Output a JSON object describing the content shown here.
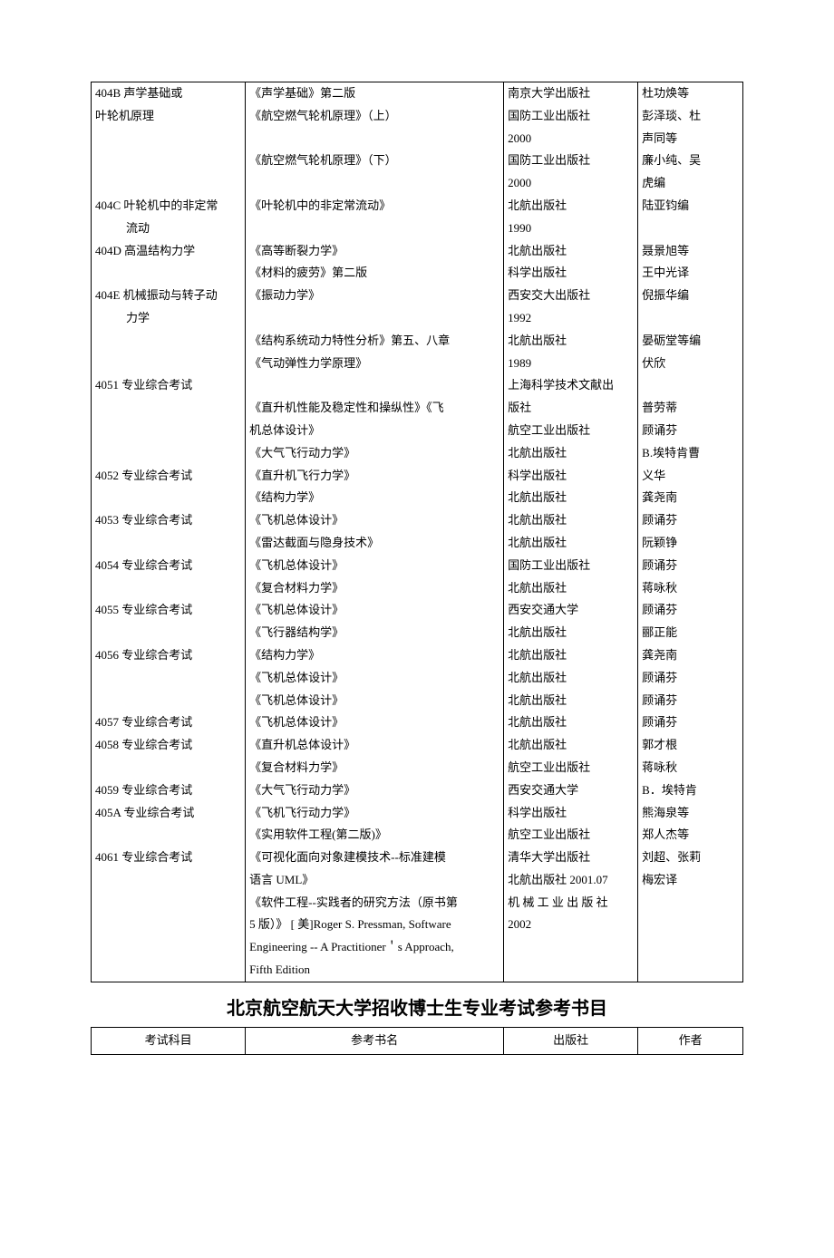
{
  "table1": {
    "rows": [
      {
        "c1": "404B 声学基础或",
        "c2": "《声学基础》第二版",
        "c3": "南京大学出版社",
        "c4": "杜功焕等"
      },
      {
        "c1": "叶轮机原理",
        "c2": "《航空燃气轮机原理》（上）",
        "c3": "国防工业出版社",
        "c4": "彭泽琰、杜"
      },
      {
        "c1": "",
        "c2": "",
        "c3": "2000",
        "c4": "声同等"
      },
      {
        "c1": "",
        "c2": "《航空燃气轮机原理》（下）",
        "c3": "国防工业出版社",
        "c4": "廉小纯、吴"
      },
      {
        "c1": "",
        "c2": "",
        "c3": "2000",
        "c4": "虎编"
      },
      {
        "c1": "404C 叶轮机中的非定常",
        "c2": "《叶轮机中的非定常流动》",
        "c3": "北航出版社",
        "c4": "陆亚钧编"
      },
      {
        "c1": "流动",
        "c1_indent": true,
        "c2": "",
        "c3": "1990",
        "c4": ""
      },
      {
        "c1": "404D 高温结构力学",
        "c2": "《高等断裂力学》",
        "c3": "北航出版社",
        "c4": "聂景旭等"
      },
      {
        "c1": "",
        "c2": "《材料的疲劳》第二版",
        "c3": "科学出版社",
        "c4": "王中光译"
      },
      {
        "c1": "404E 机械振动与转子动",
        "c2": "《振动力学》",
        "c3": "西安交大出版社",
        "c4": "倪振华编"
      },
      {
        "c1": "力学",
        "c1_indent": true,
        "c2": "",
        "c3": "1992",
        "c4": ""
      },
      {
        "c1": "",
        "c2": "《结构系统动力特性分析》第五、八章",
        "c3": "北航出版社",
        "c4": "晏砺堂等编"
      },
      {
        "c1": "",
        "c2": "《气动弹性力学原理》",
        "c3": "1989",
        "c4": "伏欣"
      },
      {
        "c1": "4051 专业综合考试",
        "c2": "",
        "c3": "上海科学技术文献出",
        "c4": ""
      },
      {
        "c1": "",
        "c2": "《直升机性能及稳定性和操纵性》《飞",
        "c3": "版社",
        "c4": "普劳蒂"
      },
      {
        "c1": "",
        "c2": "机总体设计》",
        "c3": "航空工业出版社",
        "c4": "顾诵芬"
      },
      {
        "c1": "",
        "c2": "《大气飞行动力学》",
        "c3": "北航出版社",
        "c4": "B.埃特肯曹"
      },
      {
        "c1": "4052 专业综合考试",
        "c2": "《直升机飞行力学》",
        "c3": "科学出版社",
        "c4": "义华"
      },
      {
        "c1": "",
        "c2": "《结构力学》",
        "c3": "北航出版社",
        "c4": "龚尧南"
      },
      {
        "c1": "4053 专业综合考试",
        "c2": "《飞机总体设计》",
        "c3": "北航出版社",
        "c4": "顾诵芬"
      },
      {
        "c1": "",
        "c2": "《雷达截面与隐身技术》",
        "c3": "北航出版社",
        "c4": "阮颖铮"
      },
      {
        "c1": "4054 专业综合考试",
        "c2": "《飞机总体设计》",
        "c3": "国防工业出版社",
        "c4": "顾诵芬"
      },
      {
        "c1": "",
        "c2": "《复合材料力学》",
        "c3": "北航出版社",
        "c4": "蒋咏秋"
      },
      {
        "c1": "4055 专业综合考试",
        "c2": "《飞机总体设计》",
        "c3": "西安交通大学",
        "c4": "顾诵芬"
      },
      {
        "c1": "",
        "c2": "《飞行器结构学》",
        "c3": "北航出版社",
        "c4": "郦正能"
      },
      {
        "c1": "4056 专业综合考试",
        "c2": "《结构力学》",
        "c3": "北航出版社",
        "c4": "龚尧南"
      },
      {
        "c1": "",
        "c2": "《飞机总体设计》",
        "c3": "北航出版社",
        "c4": "顾诵芬"
      },
      {
        "c1": "",
        "c2": "《飞机总体设计》",
        "c3": "北航出版社",
        "c4": "顾诵芬"
      },
      {
        "c1": "4057 专业综合考试",
        "c2": "《飞机总体设计》",
        "c3": "北航出版社",
        "c4": "顾诵芬"
      },
      {
        "c1": "4058 专业综合考试",
        "c2": "《直升机总体设计》",
        "c3": "北航出版社",
        "c4": "郭才根"
      },
      {
        "c1": "",
        "c2": "《复合材料力学》",
        "c3": "航空工业出版社",
        "c4": "蒋咏秋"
      },
      {
        "c1": "4059 专业综合考试",
        "c2": "《大气飞行动力学》",
        "c3": "西安交通大学",
        "c4": "B．埃特肯"
      },
      {
        "c1": "405A 专业综合考试",
        "c2": "《飞机飞行动力学》",
        "c3": "科学出版社",
        "c4": "熊海泉等"
      },
      {
        "c1": "",
        "c2": "《实用软件工程(第二版)》",
        "c3": "航空工业出版社",
        "c4": "郑人杰等"
      },
      {
        "c1": "4061 专业综合考试",
        "c2": "《可视化面向对象建模技术--标准建模",
        "c3": "清华大学出版社",
        "c4": "刘超、张莉"
      },
      {
        "c1": "",
        "c2": "语言 UML》",
        "c3": "北航出版社 2001.07",
        "c4": "梅宏译"
      },
      {
        "c1": "",
        "c2": "《软件工程--实践者的研究方法（原书第",
        "c3": "机 械 工 业 出 版 社",
        "c4": ""
      },
      {
        "c1": "",
        "c2": "5 版）》 [ 美]Roger S. Pressman, Software",
        "c3": "2002",
        "c4": ""
      },
      {
        "c1": "",
        "c2": "Engineering -- A Practitioner＇s Approach,",
        "c3": "",
        "c4": ""
      },
      {
        "c1": "",
        "c2": "Fifth Edition",
        "c3": "",
        "c4": ""
      }
    ]
  },
  "section_title": "北京航空航天大学招收博士生专业考试参考书目",
  "table2": {
    "header": {
      "c1": "考试科目",
      "c2": "参考书名",
      "c3": "出版社",
      "c4": "作者"
    }
  }
}
